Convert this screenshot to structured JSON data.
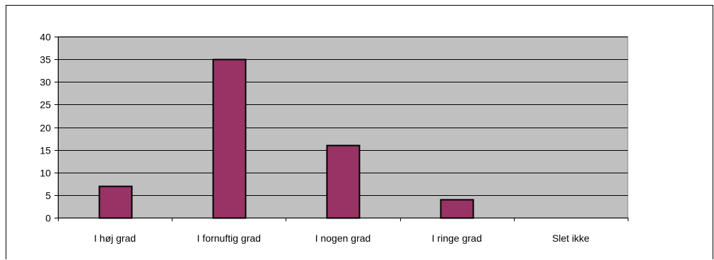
{
  "chart_data": {
    "type": "bar",
    "categories": [
      "I høj grad",
      "I fornuftig grad",
      "I nogen grad",
      "I ringe grad",
      "Slet ikke"
    ],
    "series": [
      {
        "values": [
          7,
          35,
          16,
          4,
          0
        ]
      }
    ],
    "ylim": [
      0,
      40
    ],
    "yticks": [
      0,
      5,
      10,
      15,
      20,
      25,
      30,
      35,
      40
    ],
    "grid": true,
    "legend": "none",
    "colors": {
      "bar_fill": "#993366",
      "bar_stroke": "#000000",
      "plot_background": "#c0c0c0",
      "gridline": "#000000"
    }
  }
}
